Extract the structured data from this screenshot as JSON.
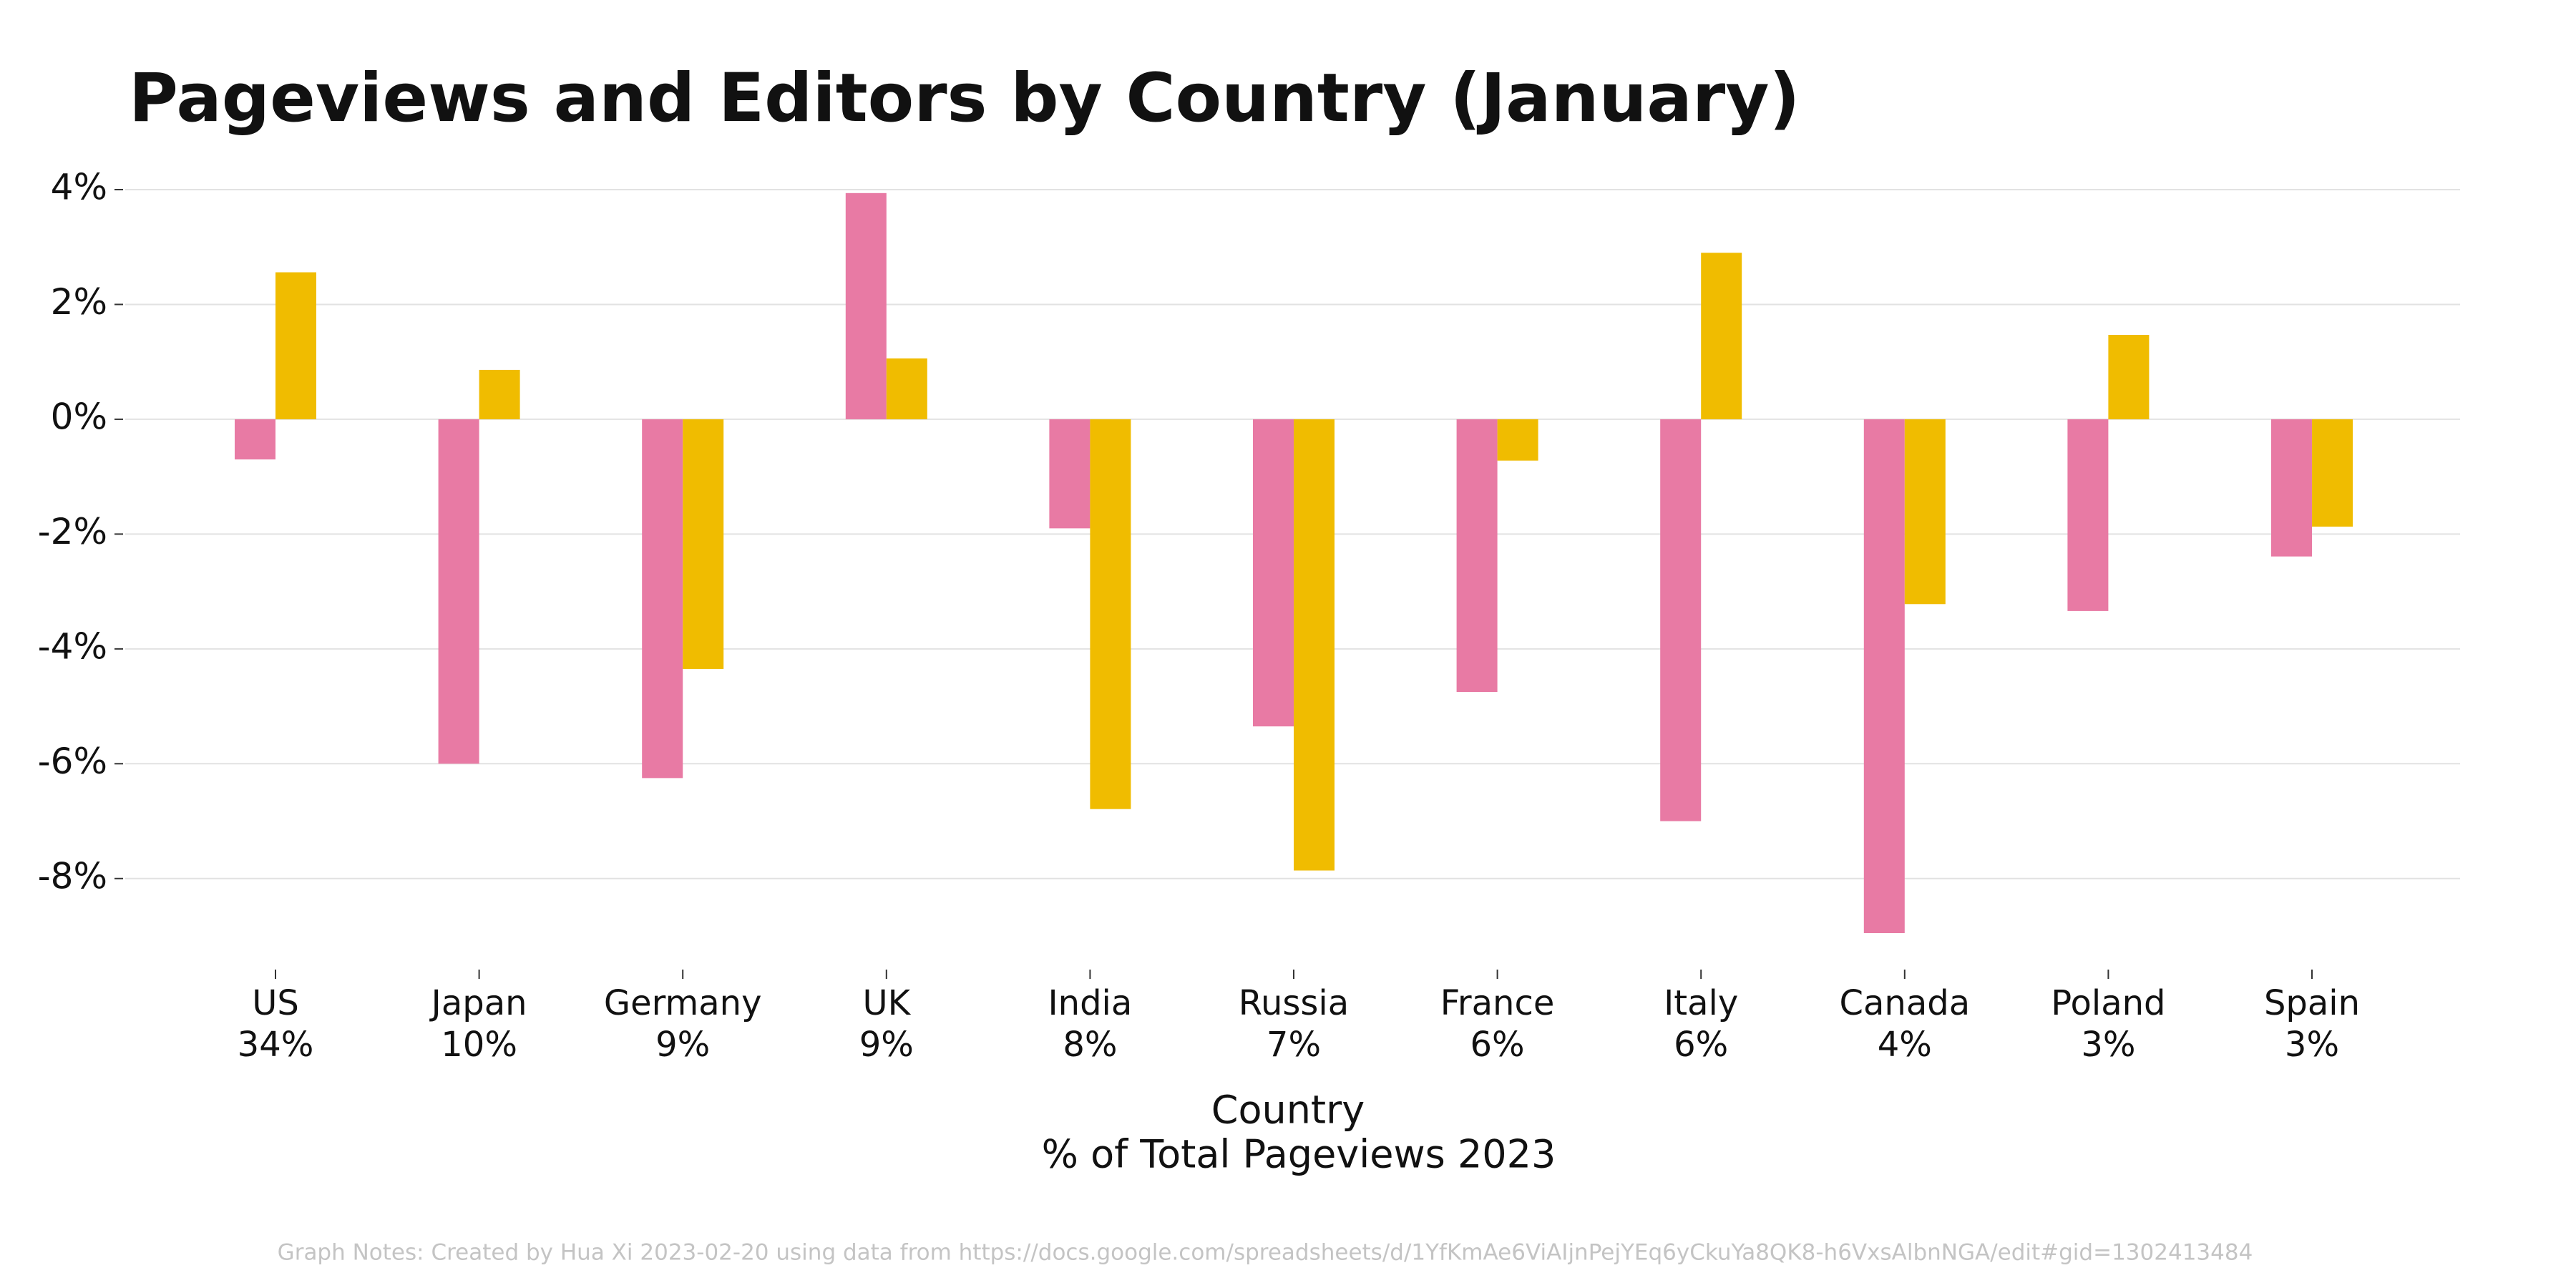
{
  "chart_data": {
    "type": "bar",
    "title": "Pageviews and Editors by Country (January)",
    "categories": [
      "US",
      "Japan",
      "Germany",
      "UK",
      "India",
      "Russia",
      "France",
      "Italy",
      "Canada",
      "Poland",
      "Spain"
    ],
    "category_sublabels": [
      "34%",
      "10%",
      "9%",
      "9%",
      "8%",
      "7%",
      "6%",
      "6%",
      "4%",
      "3%",
      "3%"
    ],
    "series": [
      {
        "color": "#e87aa4",
        "values": [
          -0.7,
          -6.0,
          -6.25,
          3.94,
          -1.9,
          -5.35,
          -4.75,
          -7.0,
          -8.95,
          -3.34,
          -2.39
        ]
      },
      {
        "color": "#f0bc00",
        "values": [
          2.56,
          0.86,
          -4.35,
          1.06,
          -6.79,
          -7.86,
          -0.72,
          2.9,
          -3.22,
          1.47,
          -1.87
        ]
      }
    ],
    "ylim": [
      -9,
      4
    ],
    "yticks": [
      {
        "value": 4,
        "label": "4%"
      },
      {
        "value": 2,
        "label": "2%"
      },
      {
        "value": 0,
        "label": "0%"
      },
      {
        "value": -2,
        "label": "-2%"
      },
      {
        "value": -4,
        "label": "-4%"
      },
      {
        "value": -6,
        "label": "-6%"
      },
      {
        "value": -8,
        "label": "-8%"
      }
    ],
    "grid": true,
    "x_label": [
      "Country",
      "% of Total Pageviews 2023"
    ],
    "note": "Graph Notes: Created by Hua Xi 2023-02-20 using data from https://docs.google.com/spreadsheets/d/1YfKmAe6ViAIjnPejYEq6yCkuYa8QK8-h6VxsAlbnNGA/edit#gid=1302413484"
  }
}
